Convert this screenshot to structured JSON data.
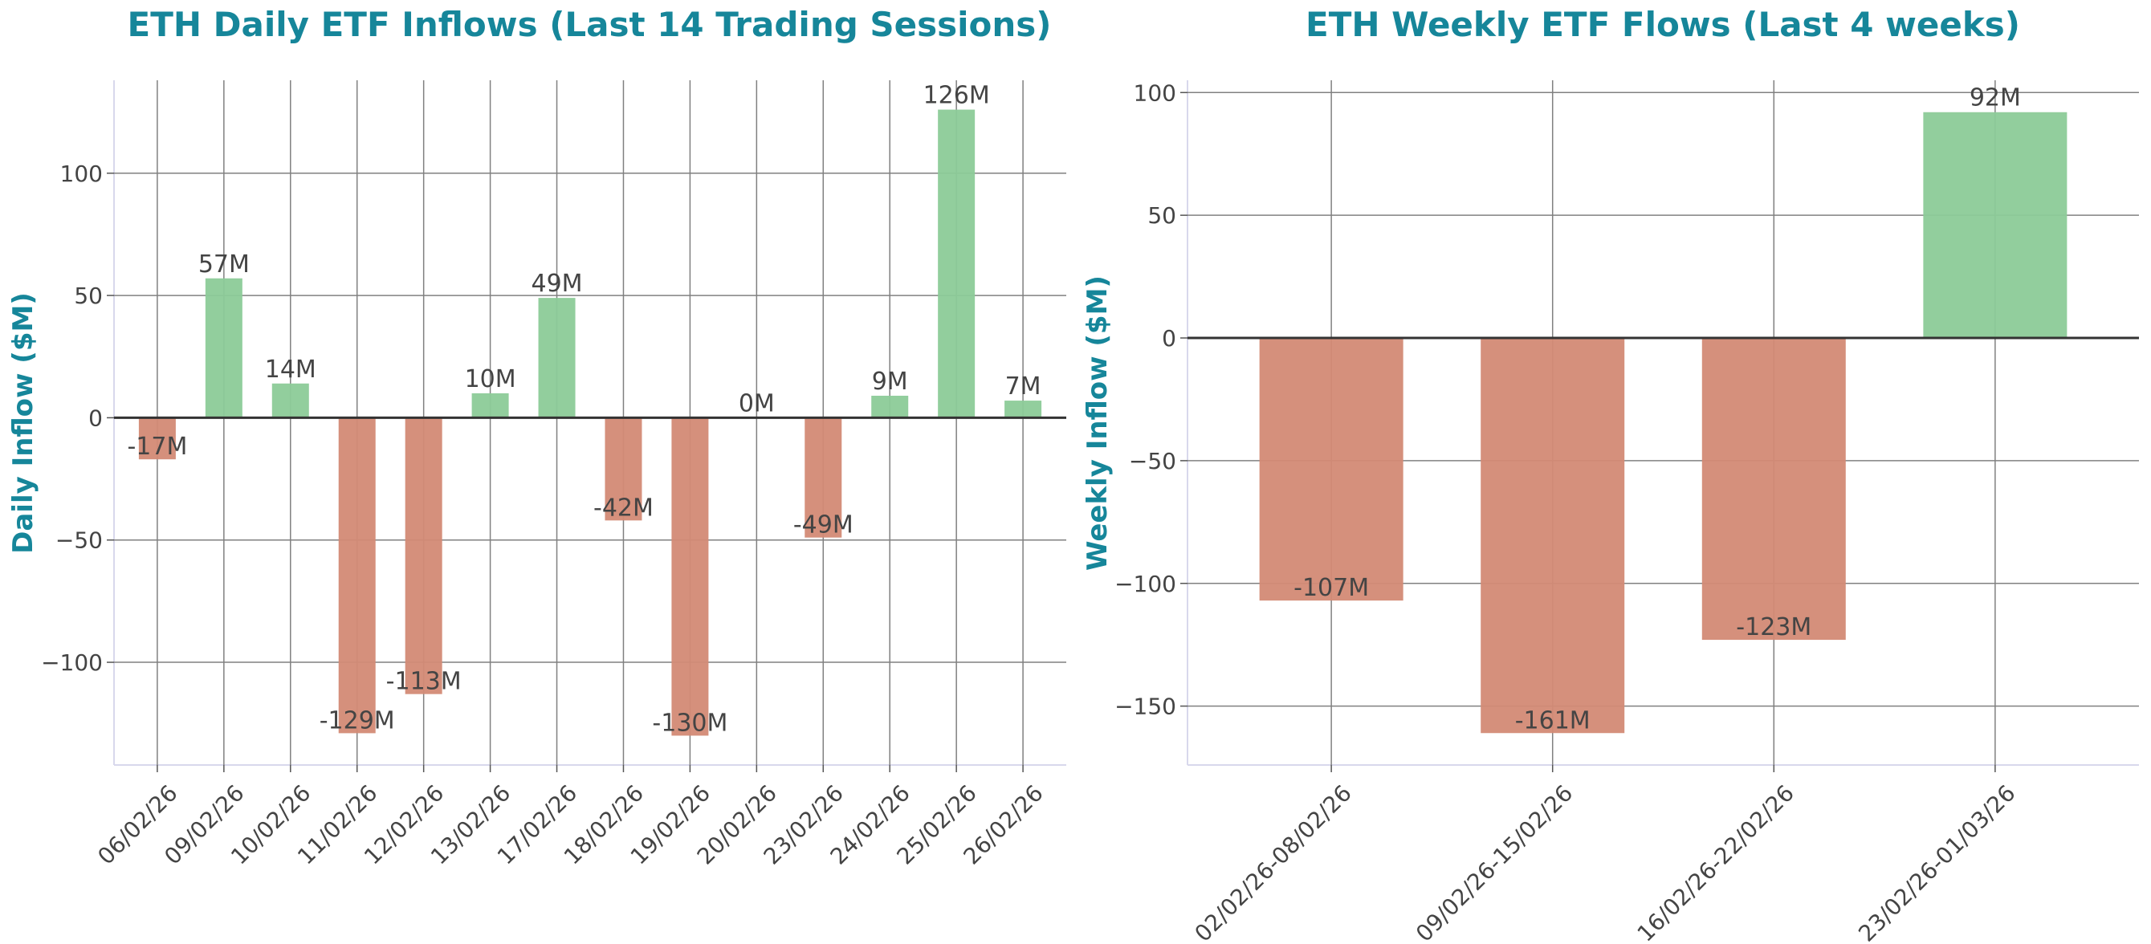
{
  "colors": {
    "title": "#16869a",
    "positive_bar": "#8ccb98",
    "negative_bar": "#d38a75",
    "grid": "#808080",
    "zero_line": "#333333",
    "text": "#444444",
    "spine": "#d8d8ec"
  },
  "chart_data": [
    {
      "type": "bar",
      "title": "ETH Daily ETF Inflows (Last 14 Trading Sessions)",
      "ylabel": "Daily Inflow ($M)",
      "xlabel": "",
      "categories": [
        "06/02/26",
        "09/02/26",
        "10/02/26",
        "11/02/26",
        "12/02/26",
        "13/02/26",
        "17/02/26",
        "18/02/26",
        "19/02/26",
        "20/02/26",
        "23/02/26",
        "24/02/26",
        "25/02/26",
        "26/02/26"
      ],
      "values": [
        -17,
        57,
        14,
        -129,
        -113,
        10,
        49,
        -42,
        -130,
        0,
        -49,
        9,
        126,
        7
      ],
      "data_labels": [
        "-17M",
        "57M",
        "14M",
        "-129M",
        "-113M",
        "10M",
        "49M",
        "-42M",
        "-130M",
        "0M",
        "-49M",
        "9M",
        "126M",
        "7M"
      ],
      "yticks": [
        -100,
        -50,
        0,
        50,
        100
      ],
      "ytick_labels": [
        "−100",
        "−50",
        "0",
        "50",
        "100"
      ],
      "ylim": [
        -142,
        138
      ],
      "grid": true,
      "legend": "none"
    },
    {
      "type": "bar",
      "title": "ETH Weekly ETF Flows (Last 4 weeks)",
      "ylabel": "Weekly Inflow ($M)",
      "xlabel": "",
      "categories": [
        "02/02/26-08/02/26",
        "09/02/26-15/02/26",
        "16/02/26-22/02/26",
        "23/02/26-01/03/26"
      ],
      "values": [
        -107,
        -161,
        -123,
        92
      ],
      "data_labels": [
        "-107M",
        "-161M",
        "-123M",
        "92M"
      ],
      "yticks": [
        -150,
        -100,
        -50,
        0,
        50,
        100
      ],
      "ytick_labels": [
        "−150",
        "−100",
        "−50",
        "0",
        "50",
        "100"
      ],
      "ylim": [
        -174,
        105
      ],
      "grid": true,
      "legend": "none"
    }
  ]
}
